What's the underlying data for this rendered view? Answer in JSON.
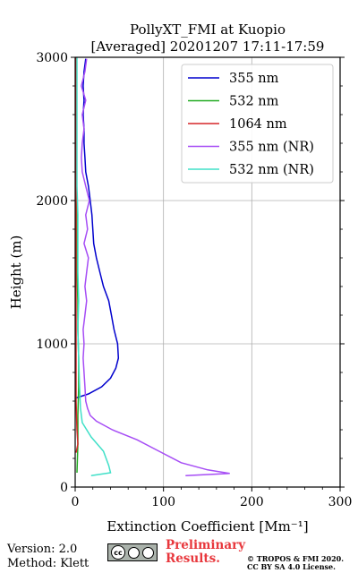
{
  "chart_data": {
    "type": "line",
    "title": "PollyXT_FMI at Kuopio",
    "subtitle": "[Averaged] 20201207 17:11-17:59",
    "xlabel": "Extinction Coefficient [Mm⁻¹]",
    "ylabel": "Height (m)",
    "xlim": [
      0,
      300
    ],
    "ylim": [
      0,
      3000
    ],
    "xticks": [
      "0",
      "100",
      "200",
      "300"
    ],
    "yticks": [
      "0",
      "1000",
      "2000",
      "3000"
    ],
    "grid": true,
    "legend_position": "top-right",
    "series": [
      {
        "name": "355 nm",
        "color": "#0000cd",
        "points": [
          [
            0,
            620
          ],
          [
            15,
            650
          ],
          [
            30,
            700
          ],
          [
            40,
            760
          ],
          [
            46,
            830
          ],
          [
            49,
            900
          ],
          [
            48,
            1000
          ],
          [
            44,
            1100
          ],
          [
            41,
            1200
          ],
          [
            38,
            1300
          ],
          [
            32,
            1400
          ],
          [
            28,
            1500
          ],
          [
            24,
            1600
          ],
          [
            21,
            1700
          ],
          [
            20,
            1800
          ],
          [
            19,
            1900
          ],
          [
            17,
            2000
          ],
          [
            15,
            2100
          ],
          [
            12,
            2200
          ],
          [
            11,
            2300
          ],
          [
            10,
            2400
          ],
          [
            10,
            2500
          ],
          [
            9,
            2600
          ],
          [
            10,
            2700
          ],
          [
            9,
            2800
          ],
          [
            10,
            2900
          ],
          [
            12,
            2990
          ]
        ]
      },
      {
        "name": "532 nm",
        "color": "#22aa22",
        "points": [
          [
            2,
            100
          ],
          [
            3,
            300
          ],
          [
            3,
            500
          ],
          [
            4,
            700
          ],
          [
            4,
            900
          ],
          [
            3,
            1100
          ],
          [
            3,
            1300
          ],
          [
            2,
            1500
          ],
          [
            2,
            1700
          ],
          [
            2,
            1900
          ],
          [
            1,
            2100
          ],
          [
            1,
            2300
          ],
          [
            1,
            2500
          ],
          [
            1,
            2700
          ],
          [
            1,
            2900
          ],
          [
            1,
            3000
          ]
        ]
      },
      {
        "name": "1064 nm",
        "color": "#d62728",
        "points": [
          [
            1,
            240
          ],
          [
            3,
            300
          ],
          [
            2,
            400
          ],
          [
            1,
            600
          ],
          [
            1,
            800
          ],
          [
            1,
            1000
          ],
          [
            1,
            1200
          ],
          [
            1,
            1400
          ],
          [
            1,
            1600
          ],
          [
            1,
            1800
          ],
          [
            1,
            2000
          ],
          [
            1,
            2200
          ],
          [
            1,
            2400
          ],
          [
            1,
            2600
          ],
          [
            1,
            2700
          ],
          [
            1,
            2800
          ],
          [
            1,
            3000
          ]
        ]
      },
      {
        "name": "355 nm (NR)",
        "color": "#a64df5",
        "points": [
          [
            125,
            80
          ],
          [
            175,
            95
          ],
          [
            150,
            120
          ],
          [
            120,
            170
          ],
          [
            95,
            250
          ],
          [
            70,
            330
          ],
          [
            42,
            400
          ],
          [
            24,
            460
          ],
          [
            17,
            500
          ],
          [
            14,
            550
          ],
          [
            12,
            600
          ],
          [
            11,
            700
          ],
          [
            10,
            800
          ],
          [
            9,
            900
          ],
          [
            10,
            1000
          ],
          [
            9,
            1100
          ],
          [
            11,
            1200
          ],
          [
            13,
            1300
          ],
          [
            11,
            1400
          ],
          [
            13,
            1500
          ],
          [
            15,
            1600
          ],
          [
            10,
            1700
          ],
          [
            14,
            1800
          ],
          [
            12,
            1900
          ],
          [
            16,
            2000
          ],
          [
            12,
            2100
          ],
          [
            8,
            2200
          ],
          [
            7,
            2300
          ],
          [
            8,
            2400
          ],
          [
            10,
            2500
          ],
          [
            8,
            2600
          ],
          [
            12,
            2700
          ],
          [
            7,
            2800
          ],
          [
            11,
            2900
          ],
          [
            13,
            2990
          ]
        ]
      },
      {
        "name": "532 nm (NR)",
        "color": "#40e0c8",
        "points": [
          [
            18,
            80
          ],
          [
            40,
            100
          ],
          [
            38,
            150
          ],
          [
            32,
            250
          ],
          [
            18,
            350
          ],
          [
            8,
            450
          ],
          [
            6,
            550
          ],
          [
            5,
            700
          ],
          [
            4,
            900
          ],
          [
            3,
            1100
          ],
          [
            4,
            1300
          ],
          [
            3,
            1500
          ],
          [
            3,
            1700
          ],
          [
            3,
            1900
          ],
          [
            2,
            2100
          ],
          [
            2,
            2300
          ],
          [
            2,
            2500
          ],
          [
            2,
            2700
          ],
          [
            2,
            2900
          ],
          [
            2,
            3000
          ]
        ]
      }
    ]
  },
  "footer": {
    "version": "Version: 2.0",
    "method": "Method: Klett",
    "cc_label": "cc",
    "license_badge": "BY SA",
    "preliminary_1": "Preliminary",
    "preliminary_2": "Results.",
    "copyright_1": "© TROPOS & FMI 2020.",
    "copyright_2": "CC BY SA 4.0 License."
  }
}
